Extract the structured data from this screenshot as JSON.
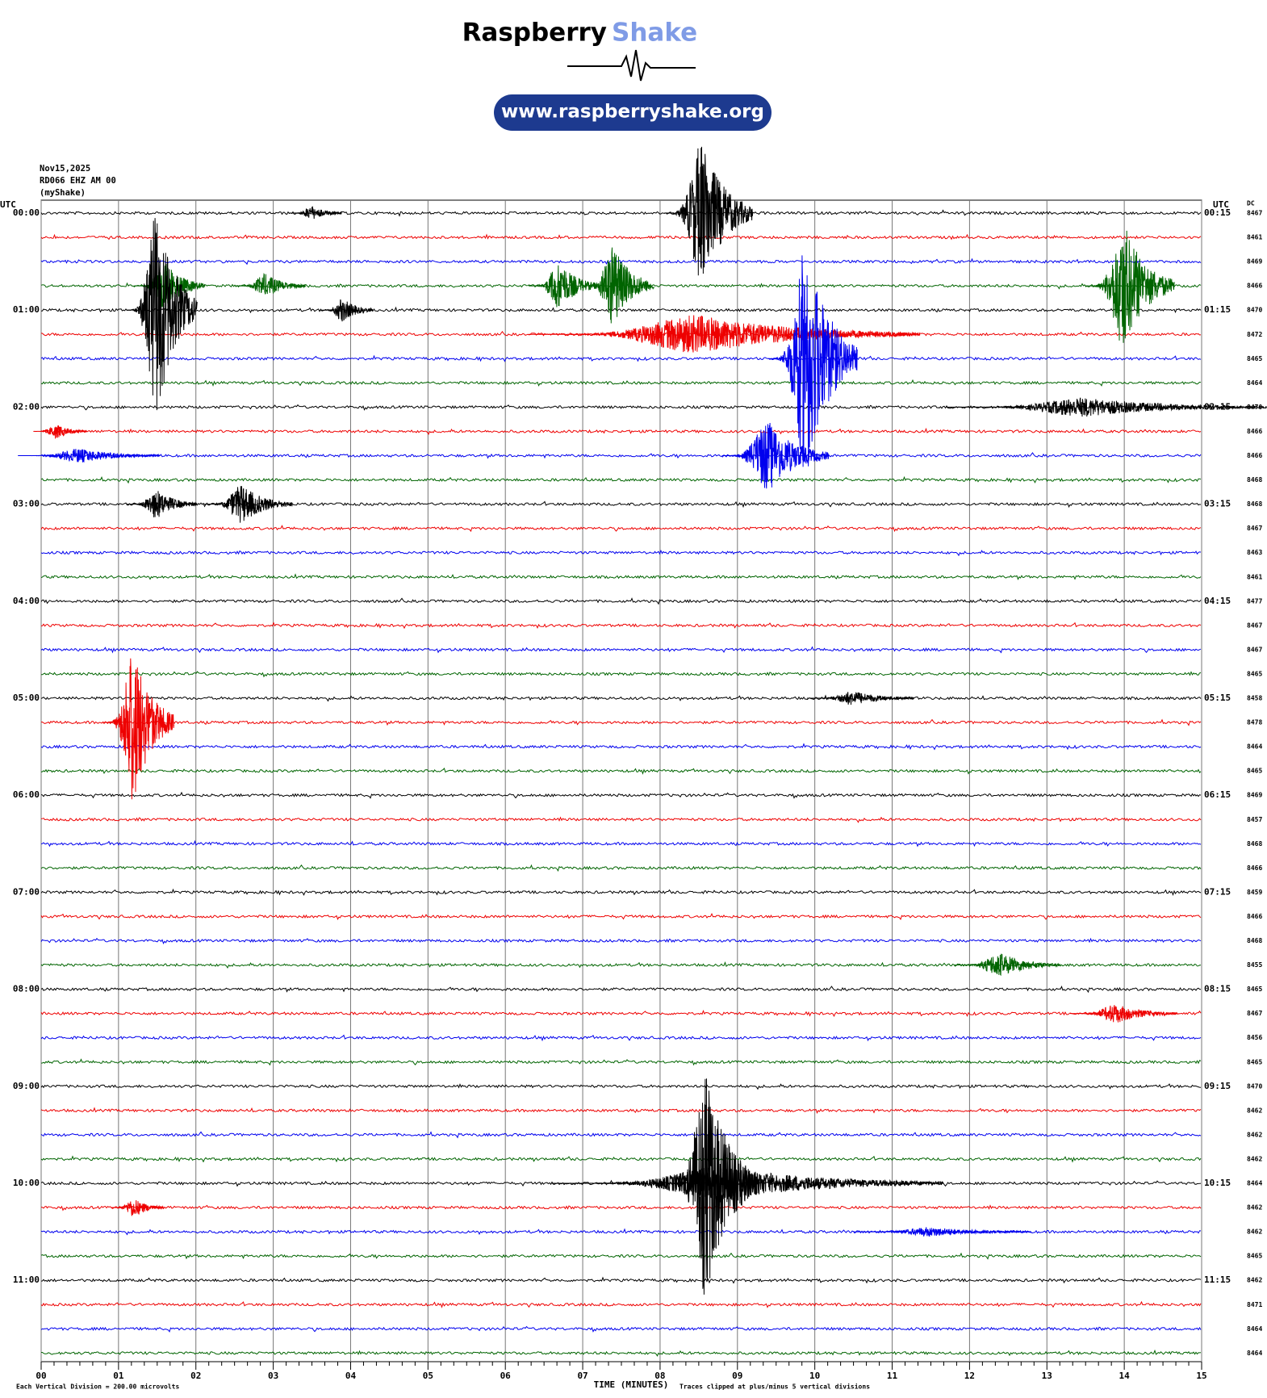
{
  "chart_data": {
    "type": "helicorder",
    "brand": [
      "Raspberry",
      "Shake"
    ],
    "url": "www.raspberryshake.org",
    "station_info": [
      "Nov15,2025",
      "RD066 EHZ AM 00",
      "(myShake)"
    ],
    "left_header": "UTC",
    "right_header": "UTC",
    "dc_header": "DC",
    "left_labels": [
      "00:00",
      "01:00",
      "02:00",
      "03:00",
      "04:00",
      "05:00",
      "06:00",
      "07:00",
      "08:00",
      "09:00",
      "10:00",
      "11:00"
    ],
    "right_labels": [
      "00:15",
      "01:15",
      "02:15",
      "03:15",
      "04:15",
      "05:15",
      "06:15",
      "07:15",
      "08:15",
      "09:15",
      "10:15",
      "11:15"
    ],
    "rows_per_label": 4,
    "colors": [
      "#000000",
      "#ee0000",
      "#0000ee",
      "#006400"
    ],
    "dc": [
      8467,
      8461,
      8469,
      8466,
      8470,
      8472,
      8465,
      8464,
      8470,
      8466,
      8466,
      8468,
      8468,
      8467,
      8463,
      8461,
      8477,
      8467,
      8467,
      8465,
      8458,
      8478,
      8464,
      8465,
      8469,
      8457,
      8468,
      8466,
      8459,
      8466,
      8468,
      8455,
      8465,
      8467,
      8456,
      8465,
      8470,
      8462,
      8462,
      8462,
      8464,
      8462,
      8462,
      8465,
      8462,
      8471,
      8464,
      8464
    ],
    "xlim": [
      0,
      15
    ],
    "xticks": [
      {
        "value": 0,
        "label": "00"
      },
      {
        "value": 1,
        "label": "01"
      },
      {
        "value": 2,
        "label": "02"
      },
      {
        "value": 3,
        "label": "03"
      },
      {
        "value": 4,
        "label": "04"
      },
      {
        "value": 5,
        "label": "05"
      },
      {
        "value": 6,
        "label": "06"
      },
      {
        "value": 7,
        "label": "07"
      },
      {
        "value": 8,
        "label": "08"
      },
      {
        "value": 9,
        "label": "09"
      },
      {
        "value": 10,
        "label": "10"
      },
      {
        "value": 11,
        "label": "11"
      },
      {
        "value": 12,
        "label": "12"
      },
      {
        "value": 13,
        "label": "13"
      },
      {
        "value": 14,
        "label": "14"
      },
      {
        "value": 15,
        "label": "15"
      }
    ],
    "xlabel": "TIME (MINUTES)",
    "scale_note": "Each Vertical Division =  200.00 microvolts",
    "clip_note": "Traces clipped at plus/minus 5 vertical divisions",
    "grid": true,
    "events": [
      {
        "row": 0,
        "minute": 8.55,
        "amplitude": 3,
        "duration": 0.5
      },
      {
        "row": 0,
        "minute": 3.5,
        "amplitude": 0.3,
        "duration": 0.3
      },
      {
        "row": 3,
        "minute": 1.6,
        "amplitude": 1,
        "duration": 0.4
      },
      {
        "row": 3,
        "minute": 2.9,
        "amplitude": 0.5,
        "duration": 0.4
      },
      {
        "row": 3,
        "minute": 6.7,
        "amplitude": 1,
        "duration": 0.4
      },
      {
        "row": 3,
        "minute": 7.4,
        "amplitude": 1.7,
        "duration": 0.4
      },
      {
        "row": 3,
        "minute": 14,
        "amplitude": 2.6,
        "duration": 0.5
      },
      {
        "row": 4,
        "minute": 1.5,
        "amplitude": 4.5,
        "duration": 0.4
      },
      {
        "row": 4,
        "minute": 3.9,
        "amplitude": 0.5,
        "duration": 0.3
      },
      {
        "row": 5,
        "minute": 8.5,
        "amplitude": 0.8,
        "duration": 2.2
      },
      {
        "row": 6,
        "minute": 9.9,
        "amplitude": 5,
        "duration": 0.5
      },
      {
        "row": 8,
        "minute": 13.5,
        "amplitude": 0.4,
        "duration": 1.8
      },
      {
        "row": 9,
        "minute": 0.2,
        "amplitude": 0.3,
        "duration": 0.3
      },
      {
        "row": 10,
        "minute": 0.5,
        "amplitude": 0.3,
        "duration": 0.8
      },
      {
        "row": 10,
        "minute": 9.4,
        "amplitude": 1.5,
        "duration": 0.6
      },
      {
        "row": 12,
        "minute": 1.5,
        "amplitude": 0.6,
        "duration": 0.4
      },
      {
        "row": 12,
        "minute": 2.6,
        "amplitude": 0.8,
        "duration": 0.5
      },
      {
        "row": 20,
        "minute": 10.5,
        "amplitude": 0.3,
        "duration": 0.6
      },
      {
        "row": 21,
        "minute": 1.2,
        "amplitude": 3.3,
        "duration": 0.4
      },
      {
        "row": 31,
        "minute": 12.4,
        "amplitude": 0.5,
        "duration": 0.6
      },
      {
        "row": 33,
        "minute": 13.9,
        "amplitude": 0.4,
        "duration": 0.6
      },
      {
        "row": 40,
        "minute": 8.6,
        "amplitude": 4.8,
        "duration": 0.5
      },
      {
        "row": 40,
        "minute": 8.8,
        "amplitude": 0.7,
        "duration": 2.2
      },
      {
        "row": 41,
        "minute": 1.2,
        "amplitude": 0.4,
        "duration": 0.3
      },
      {
        "row": 42,
        "minute": 11.5,
        "amplitude": 0.2,
        "duration": 1
      }
    ]
  }
}
